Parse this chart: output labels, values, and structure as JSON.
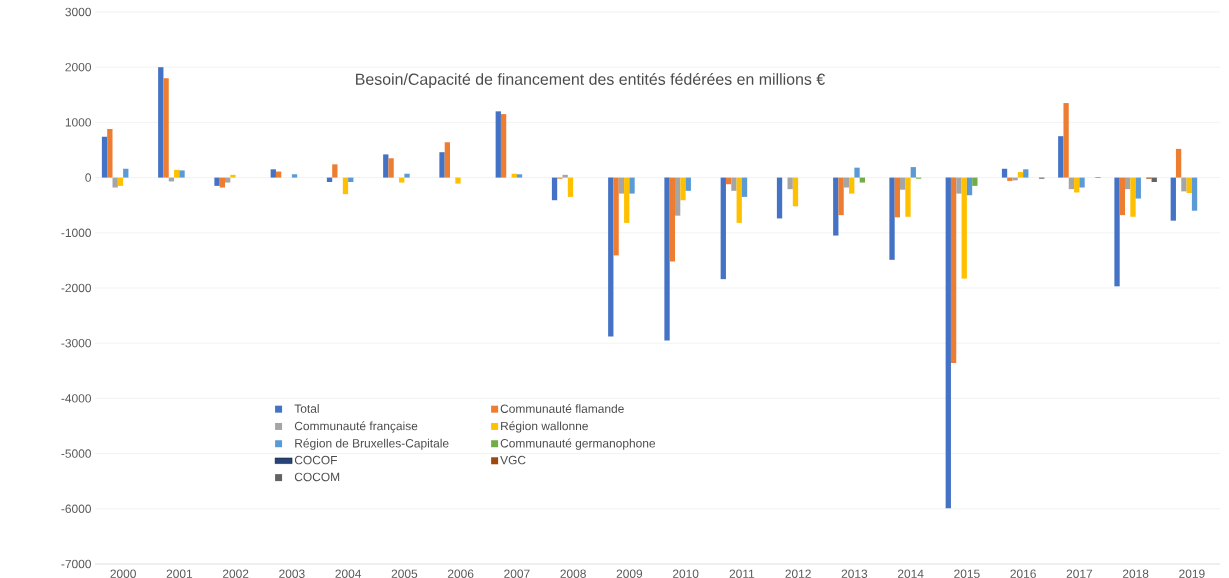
{
  "chart_data": {
    "type": "bar",
    "title": "Besoin/Capacité de financement des entités fédérées en millions €",
    "categories": [
      "2000",
      "2001",
      "2002",
      "2003",
      "2004",
      "2005",
      "2006",
      "2007",
      "2008",
      "2009",
      "2010",
      "2011",
      "2012",
      "2013",
      "2014",
      "2015",
      "2016",
      "2017",
      "2018",
      "2019"
    ],
    "series": [
      {
        "name": "Total",
        "color": "#4472c4",
        "values": [
          740,
          2000,
          -150,
          150,
          -80,
          420,
          460,
          1200,
          -410,
          -2880,
          -2950,
          -1840,
          -740,
          -1050,
          -1490,
          -5990,
          160,
          750,
          -1970,
          -780
        ]
      },
      {
        "name": "Communauté flamande",
        "color": "#ed7d31",
        "values": [
          880,
          1800,
          -180,
          110,
          240,
          350,
          640,
          1150,
          -20,
          -1410,
          -1520,
          -120,
          null,
          -680,
          -720,
          -3360,
          -60,
          1350,
          -680,
          520
        ]
      },
      {
        "name": "Communauté française",
        "color": "#a5a5a5",
        "values": [
          -180,
          -70,
          -90,
          null,
          null,
          null,
          null,
          null,
          50,
          -290,
          -690,
          -240,
          -210,
          -180,
          -220,
          -290,
          -50,
          -210,
          -210,
          -250
        ]
      },
      {
        "name": "Région wallonne",
        "color": "#ffc000",
        "values": [
          -150,
          140,
          50,
          null,
          -300,
          -90,
          -110,
          70,
          -350,
          -820,
          -410,
          -820,
          -520,
          -290,
          -710,
          -1830,
          100,
          -270,
          -710,
          -280
        ]
      },
      {
        "name": "Région de Bruxelles-Capitale",
        "color": "#5b9bd5",
        "values": [
          160,
          130,
          null,
          60,
          -80,
          70,
          null,
          60,
          null,
          -290,
          -240,
          -350,
          null,
          180,
          190,
          -320,
          150,
          -180,
          -380,
          -600
        ]
      },
      {
        "name": "Communauté germanophone",
        "color": "#70ad47",
        "values": [
          null,
          null,
          null,
          null,
          null,
          null,
          null,
          null,
          null,
          null,
          null,
          null,
          null,
          -90,
          -20,
          -150,
          null,
          null,
          null,
          null
        ]
      },
      {
        "name": "COCOF",
        "color": "#264478",
        "values": [
          null,
          null,
          null,
          null,
          null,
          null,
          null,
          null,
          null,
          null,
          null,
          null,
          null,
          null,
          null,
          null,
          null,
          null,
          null,
          null
        ]
      },
      {
        "name": "VGC",
        "color": "#9e480e",
        "values": [
          null,
          null,
          null,
          null,
          null,
          null,
          null,
          null,
          null,
          null,
          null,
          null,
          null,
          null,
          null,
          null,
          null,
          null,
          -20,
          null
        ]
      },
      {
        "name": "COCOM",
        "color": "#636363",
        "values": [
          null,
          null,
          null,
          null,
          null,
          null,
          null,
          null,
          null,
          null,
          null,
          null,
          null,
          null,
          null,
          null,
          -20,
          10,
          -80,
          null
        ]
      }
    ],
    "ylim": [
      -7000,
      3000
    ],
    "yticks": [
      -7000,
      -6000,
      -5000,
      -4000,
      -3000,
      -2000,
      -1000,
      0,
      1000,
      2000,
      3000
    ],
    "grid": "y",
    "legend": "bottom"
  }
}
